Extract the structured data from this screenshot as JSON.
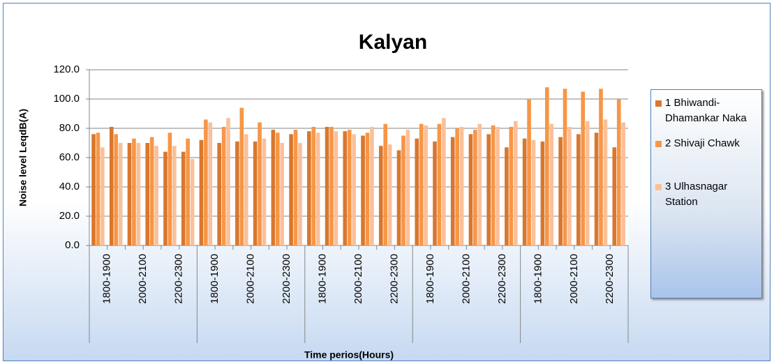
{
  "chart_data": {
    "type": "bar",
    "title": "Kalyan",
    "y_label": "Noise level LeqdB(A)",
    "x_label": "Time perios(Hours)",
    "categories": [
      "1800-1900",
      null,
      "2000-2100",
      null,
      "2200-2300",
      null,
      "1800-1900",
      null,
      "2000-2100",
      null,
      "2200-2300",
      null,
      "1800-1900",
      null,
      "2000-2100",
      null,
      "2200-2300",
      null,
      "1800-1900",
      null,
      "2000-2100",
      null,
      "2200-2300",
      null,
      "1800-1900",
      null,
      "2000-2100",
      null,
      "2200-2300",
      null
    ],
    "series": [
      {
        "name": "1 Bhiwandi-Dhamankar Naka",
        "color": "#d9772e",
        "values": [
          76,
          81,
          70,
          70,
          64,
          64,
          72,
          70,
          71,
          71,
          79,
          76,
          78,
          81,
          78,
          75,
          68,
          65,
          73,
          71,
          74,
          76,
          76,
          67,
          73,
          71,
          74,
          76,
          77,
          67
        ]
      },
      {
        "name": "2 Shivaji Chawk",
        "color": "#f79646",
        "values": [
          77,
          76,
          73,
          74,
          77,
          73,
          86,
          81,
          94,
          84,
          77,
          79,
          81,
          81,
          79,
          77,
          83,
          75,
          83,
          83,
          80,
          79,
          82,
          81,
          100,
          108,
          107,
          105,
          107,
          100
        ]
      },
      {
        "name": "3 Ulhasnagar Station",
        "color": "#fac09a",
        "values": [
          67,
          70,
          70,
          68,
          68,
          59,
          84,
          87,
          76,
          73,
          70,
          70,
          77,
          78,
          76,
          81,
          69,
          79,
          82,
          87,
          81,
          83,
          81,
          85,
          72,
          83,
          81,
          85,
          86,
          84
        ]
      }
    ],
    "ylim": [
      0,
      120
    ],
    "yticks": [
      {
        "value": 0,
        "label": "0.0"
      },
      {
        "value": 20,
        "label": "20.0"
      },
      {
        "value": 40,
        "label": "40.0"
      },
      {
        "value": 60,
        "label": "60.0"
      },
      {
        "value": 80,
        "label": "80.0"
      },
      {
        "value": 100,
        "label": "100.0"
      },
      {
        "value": 120,
        "label": "120.0"
      }
    ],
    "grid": true,
    "legend": "right"
  }
}
